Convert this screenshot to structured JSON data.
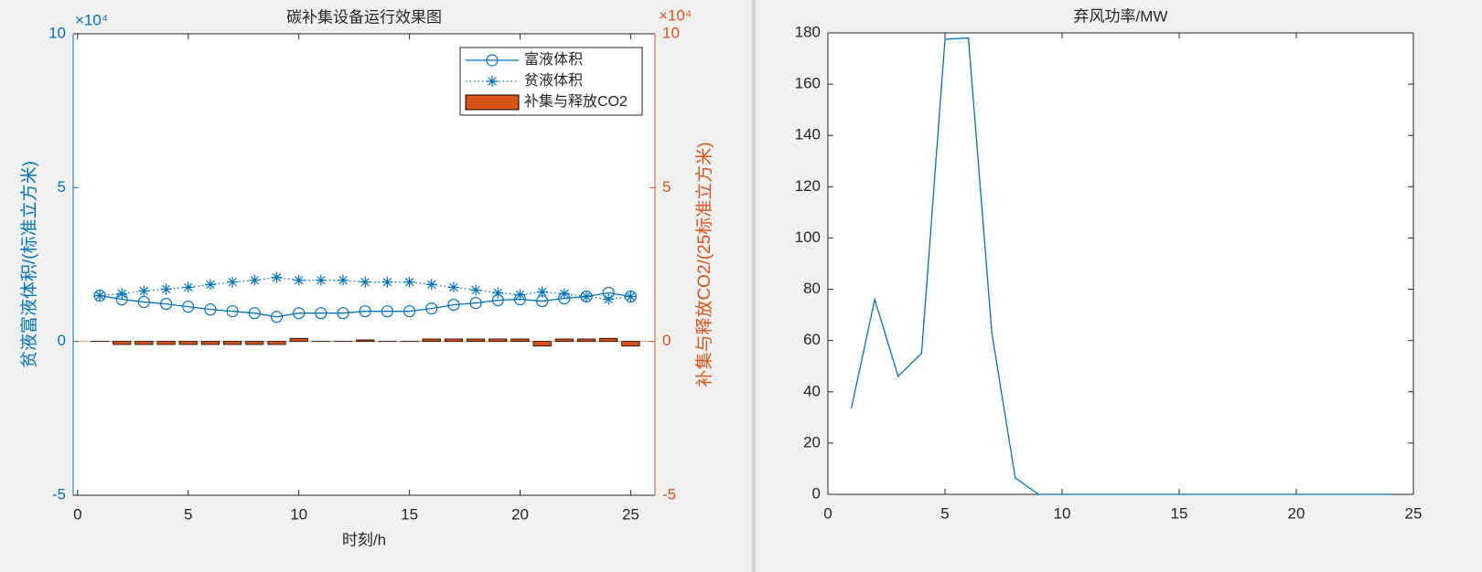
{
  "chart_data": [
    {
      "type": "combo",
      "title": "碳补集设备运行效果图",
      "x_label": "时刻/h",
      "y_label": "贫液富液体积/(标准立方米)",
      "y2_label": "补集与释放CO2/(25标准立方米)",
      "y_exponent": "×10⁴",
      "y2_exponent": "×10⁴",
      "x": [
        1,
        2,
        3,
        4,
        5,
        6,
        7,
        8,
        9,
        10,
        11,
        12,
        13,
        14,
        15,
        16,
        17,
        18,
        19,
        20,
        21,
        22,
        23,
        24,
        25
      ],
      "series": [
        {
          "name": "富液体积",
          "type": "line",
          "marker": "o",
          "line_style": "solid",
          "color": "#0072bd",
          "values": [
            1.49,
            1.37,
            1.28,
            1.22,
            1.13,
            1.04,
            0.98,
            0.92,
            0.8,
            0.92,
            0.92,
            0.92,
            0.98,
            0.98,
            0.98,
            1.07,
            1.19,
            1.25,
            1.34,
            1.37,
            1.31,
            1.4,
            1.46,
            1.58,
            1.46
          ]
        },
        {
          "name": "贫液体积",
          "type": "line",
          "marker": "*",
          "line_style": "dotted",
          "color": "#0072bd",
          "values": [
            1.49,
            1.55,
            1.64,
            1.7,
            1.76,
            1.85,
            1.93,
            1.99,
            2.08,
            1.99,
            1.99,
            1.99,
            1.93,
            1.93,
            1.93,
            1.85,
            1.76,
            1.67,
            1.58,
            1.52,
            1.61,
            1.55,
            1.46,
            1.37,
            1.46
          ]
        },
        {
          "name": "补集与释放CO2",
          "type": "bar",
          "axis": "y2",
          "color": "#d95319",
          "values": [
            0,
            -0.1,
            -0.1,
            -0.1,
            -0.1,
            -0.1,
            -0.1,
            -0.1,
            -0.1,
            0.1,
            0,
            0,
            0.05,
            0,
            0,
            0.08,
            0.08,
            0.08,
            0.08,
            0.08,
            -0.15,
            0.08,
            0.08,
            0.1,
            -0.15
          ]
        }
      ],
      "xlim": [
        -0.2,
        26.1
      ],
      "xticks": [
        0,
        5,
        10,
        15,
        20,
        25
      ],
      "ylim": [
        -5,
        10
      ],
      "yticks": [
        -5,
        0,
        5,
        10
      ],
      "y_color": "#0072bd",
      "y2lim": [
        -5,
        10
      ],
      "y2ticks": [
        -5,
        0,
        5,
        10
      ],
      "y2_color": "#d95319",
      "legend_location": "northeast"
    },
    {
      "type": "line",
      "title": "弃风功率/MW",
      "x": [
        1,
        2,
        3,
        4,
        5,
        6,
        7,
        8,
        9,
        10,
        11,
        12,
        13,
        14,
        15,
        16,
        17,
        18,
        19,
        20,
        21,
        22,
        23,
        24
      ],
      "series": [
        {
          "name": "弃风功率",
          "type": "line",
          "line_style": "solid",
          "color": "#0072bd",
          "values": [
            33.5,
            76,
            46,
            55,
            177.5,
            178,
            63,
            6.4,
            0,
            0,
            0,
            0,
            0,
            0,
            0,
            0,
            0,
            0,
            0,
            0,
            0,
            0,
            0,
            0
          ]
        }
      ],
      "xlim": [
        0,
        25
      ],
      "xticks": [
        0,
        5,
        10,
        15,
        20,
        25
      ],
      "ylim": [
        0,
        180
      ],
      "yticks": [
        0,
        20,
        40,
        60,
        80,
        100,
        120,
        140,
        160,
        180
      ],
      "y_color": "#262626"
    }
  ]
}
